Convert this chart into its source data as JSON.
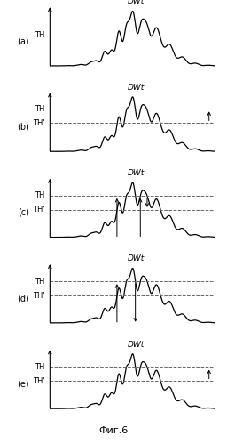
{
  "panels": [
    "(a)",
    "(b)",
    "(c)",
    "(d)",
    "(e)"
  ],
  "fig_label": "Фиг.6",
  "th_label": "TH",
  "thp_label": "TH'",
  "dwt_label": "DWt",
  "background": "#ffffff",
  "line_color": "#000000",
  "th_color": "#666666",
  "TH_a": 0.56,
  "TH_b": 0.78,
  "THp_b": 0.52,
  "TH_c": 0.76,
  "THp_c": 0.5,
  "TH_d": 0.76,
  "THp_d": 0.5,
  "TH_e": 0.76,
  "THp_e": 0.5
}
